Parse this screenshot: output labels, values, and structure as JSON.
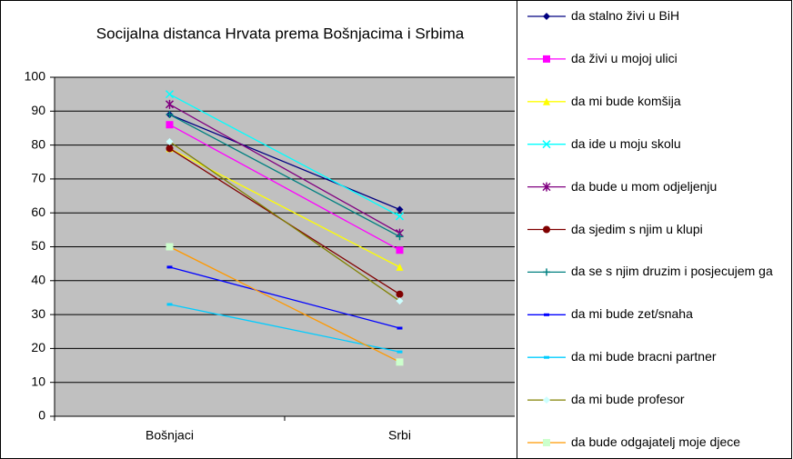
{
  "chart_data": {
    "type": "line",
    "title": "Socijalna distanca Hrvata prema Bošnjacima i Srbima",
    "categories": [
      "Bošnjaci",
      "Srbi"
    ],
    "ylim": [
      0,
      100
    ],
    "yticks": [
      0,
      10,
      20,
      30,
      40,
      50,
      60,
      70,
      80,
      90,
      100
    ],
    "grid": true,
    "legend": "right",
    "series": [
      {
        "name": "da stalno živi u BiH",
        "color": "#000080",
        "marker": "diamond",
        "values": [
          89,
          61
        ]
      },
      {
        "name": "da živi u mojoj ulici",
        "color": "#ff00ff",
        "marker": "square",
        "values": [
          86,
          49
        ]
      },
      {
        "name": "da mi bude komšija",
        "color": "#ffff00",
        "marker": "triangle",
        "values": [
          79,
          44
        ]
      },
      {
        "name": "da ide u moju skolu",
        "color": "#00ffff",
        "marker": "x",
        "values": [
          95,
          59
        ]
      },
      {
        "name": "da bude u mom odjeljenju",
        "color": "#800080",
        "marker": "star",
        "values": [
          92,
          54
        ]
      },
      {
        "name": "da sjedim s njim u klupi",
        "color": "#800000",
        "marker": "circle",
        "values": [
          79,
          36
        ]
      },
      {
        "name": "da se s njim druzim i posjecujem ga",
        "color": "#008080",
        "marker": "plus",
        "values": [
          89,
          53
        ]
      },
      {
        "name": "da mi bude zet/snaha",
        "color": "#0000ff",
        "marker": "dash",
        "values": [
          44,
          26
        ]
      },
      {
        "name": "da mi bude bracni partner",
        "color": "#00ccff",
        "marker": "dash",
        "values": [
          33,
          19
        ]
      },
      {
        "name": "da mi bude profesor",
        "color": "#808000",
        "marker": "diamond",
        "marker_color": "#ccffff",
        "values": [
          81,
          34
        ]
      },
      {
        "name": "da bude odgajatelj moje djece",
        "color": "#ff9900",
        "marker": "square",
        "marker_color": "#ccffcc",
        "values": [
          50,
          16
        ]
      }
    ]
  }
}
